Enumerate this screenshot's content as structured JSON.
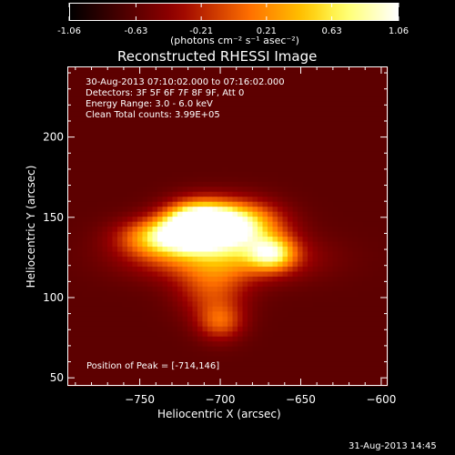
{
  "chart_data": {
    "type": "heatmap",
    "title": "Reconstructed RHESSI Image",
    "xlabel": "Heliocentric X (arcsec)",
    "ylabel": "Heliocentric Y (arcsec)",
    "xlim": [
      -795,
      -596
    ],
    "ylim": [
      45,
      244
    ],
    "x_ticks": [
      -750,
      -700,
      -650,
      -600
    ],
    "y_ticks": [
      50,
      100,
      150,
      200
    ],
    "colorscale": "red-temperature",
    "colorbar": {
      "range": [
        -1.06,
        1.06
      ],
      "tick_labels": [
        "-1.06",
        "-0.63",
        "-0.21",
        "0.21",
        "0.63",
        "1.06"
      ],
      "unit_label": "(photons cm⁻² s⁻¹ asec⁻²)"
    },
    "annotations": [
      "30-Aug-2013 07:10:02.000 to 07:16:02.000",
      "Detectors: 3F 5F 6F 7F 8F 9F, Att 0",
      "Energy Range: 3.0 - 6.0 keV",
      "Clean    Total counts: 3.99E+05"
    ],
    "peak_label": "Position of Peak = [-714,146]",
    "peak": {
      "x": -714,
      "y": 146,
      "value": 1.06
    },
    "sources": [
      {
        "x": -714,
        "y": 146,
        "sx": 14,
        "sy": 9,
        "amp": 1.0
      },
      {
        "x": -690,
        "y": 145,
        "sx": 18,
        "sy": 10,
        "amp": 0.72
      },
      {
        "x": -735,
        "y": 138,
        "sx": 18,
        "sy": 8,
        "amp": 0.55
      },
      {
        "x": -668,
        "y": 128,
        "sx": 10,
        "sy": 7,
        "amp": 0.5
      },
      {
        "x": -700,
        "y": 125,
        "sx": 35,
        "sy": 10,
        "amp": 0.38
      },
      {
        "x": -705,
        "y": 105,
        "sx": 15,
        "sy": 12,
        "amp": 0.25
      },
      {
        "x": -700,
        "y": 85,
        "sx": 10,
        "sy": 8,
        "amp": 0.28
      }
    ],
    "background_level": 0.2
  },
  "timestamp": "31-Aug-2013 14:45",
  "colors": {
    "background": "#000000",
    "text": "#ffffff"
  }
}
